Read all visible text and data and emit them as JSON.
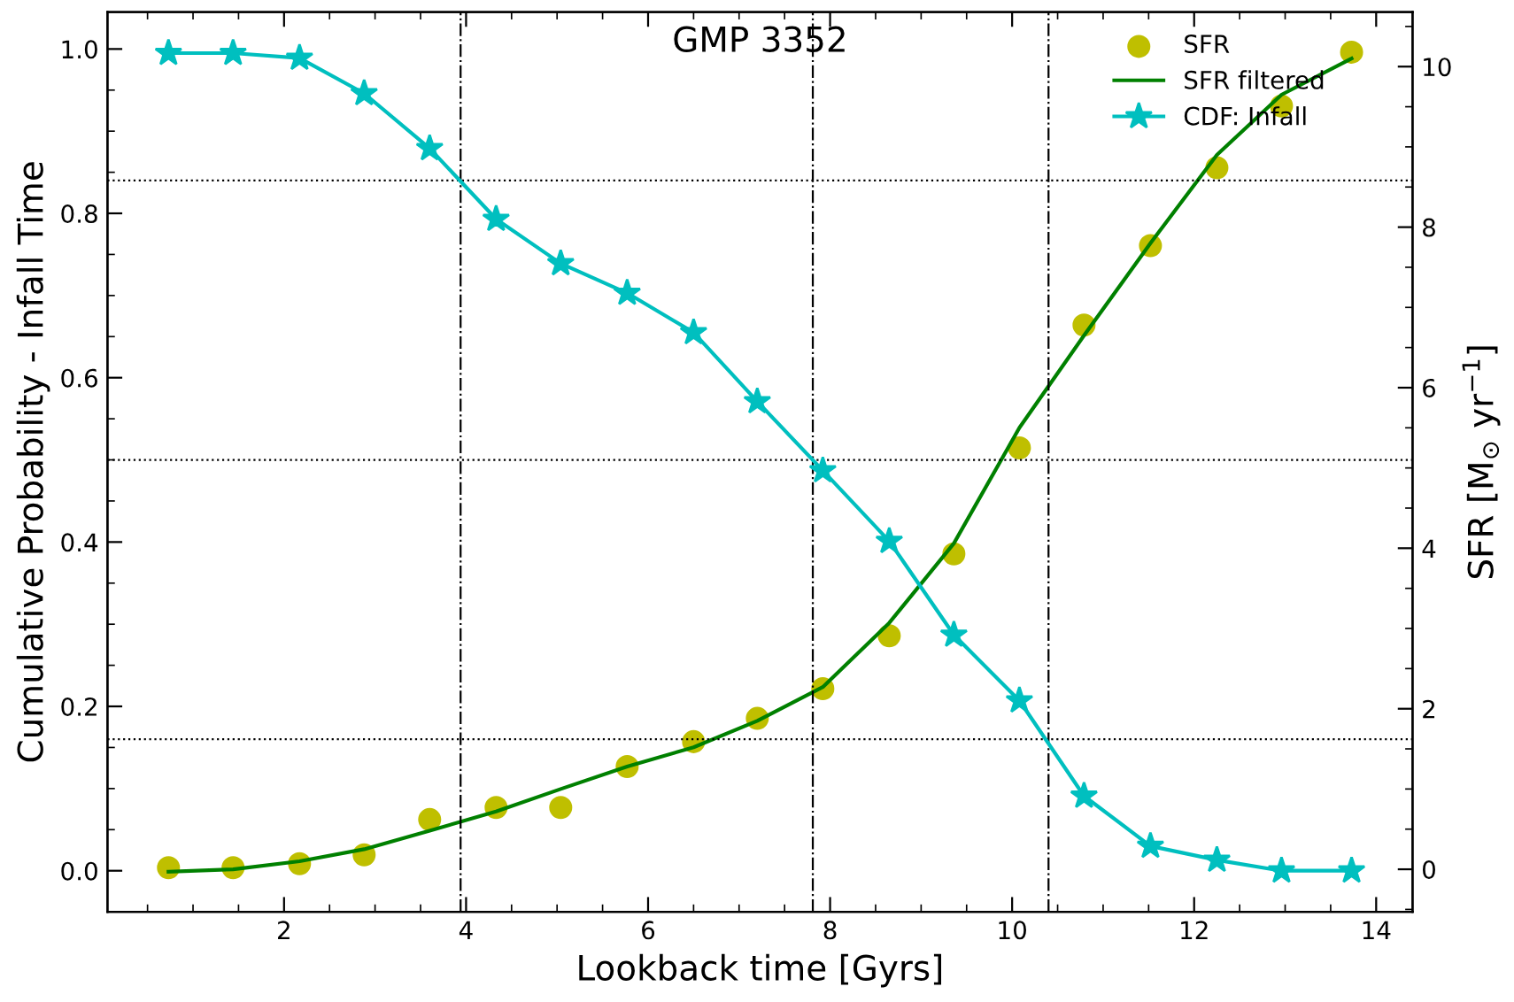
{
  "chart_data": {
    "type": "line",
    "title": "GMP 3352",
    "xlabel": "Lookback time [Gyrs]",
    "ylabel": "Cumulative Probability - Infall Time",
    "y2label": "SFR [M$_{⊙}$ yr$^{−1}$]",
    "xlim": [
      0.06,
      14.4
    ],
    "xticks": [
      2,
      4,
      6,
      8,
      10,
      12,
      14
    ],
    "ylim": [
      -0.05,
      1.045
    ],
    "yticks": [
      {
        "value": 0.0,
        "label": "0.0"
      },
      {
        "value": 0.2,
        "label": "0.2"
      },
      {
        "value": 0.4,
        "label": "0.4"
      },
      {
        "value": 0.6,
        "label": "0.6"
      },
      {
        "value": 0.8,
        "label": "0.8"
      },
      {
        "value": 1.0,
        "label": "1.0"
      }
    ],
    "y2lim": [
      -0.53,
      10.68
    ],
    "y2ticks": [
      0,
      2,
      4,
      6,
      8,
      10
    ],
    "x": [
      0.73,
      1.44,
      2.17,
      2.88,
      3.6,
      4.33,
      5.04,
      5.77,
      6.5,
      7.2,
      7.92,
      8.65,
      9.36,
      10.08,
      10.79,
      11.52,
      12.25,
      12.96,
      13.73
    ],
    "series": [
      {
        "name": "SFR",
        "type": "scatter",
        "axis": "y2",
        "color": "#bfbf00",
        "marker": "circle",
        "values": [
          0.02,
          0.02,
          0.07,
          0.18,
          0.62,
          0.77,
          0.77,
          1.28,
          1.59,
          1.88,
          2.25,
          2.91,
          3.93,
          5.25,
          6.78,
          7.77,
          8.74,
          9.51,
          10.18
        ]
      },
      {
        "name": "SFR filtered",
        "type": "line",
        "axis": "y2",
        "color": "#008000",
        "marker": "none",
        "values": [
          -0.03,
          0.0,
          0.1,
          0.25,
          0.48,
          0.72,
          1.0,
          1.28,
          1.52,
          1.85,
          2.27,
          3.07,
          4.06,
          5.5,
          6.65,
          7.8,
          8.9,
          9.65,
          10.1
        ]
      },
      {
        "name": "CDF: Infall",
        "type": "line",
        "axis": "y",
        "color": "#00bfbf",
        "marker": "star",
        "values": [
          0.995,
          0.995,
          0.989,
          0.946,
          0.879,
          0.793,
          0.739,
          0.703,
          0.655,
          0.571,
          0.487,
          0.401,
          0.287,
          0.207,
          0.091,
          0.03,
          0.013,
          0.0,
          0.0
        ]
      }
    ],
    "ref_lines": [
      {
        "axis": "x",
        "value": 3.94,
        "color": "#000000",
        "line_style": "dashdot"
      },
      {
        "axis": "x",
        "value": 7.81,
        "color": "#000000",
        "line_style": "dashdot"
      },
      {
        "axis": "x",
        "value": 10.4,
        "color": "#000000",
        "line_style": "dashdot"
      },
      {
        "axis": "y",
        "value": 0.84,
        "color": "#000000",
        "line_style": "dotted"
      },
      {
        "axis": "y",
        "value": 0.5,
        "color": "#000000",
        "line_style": "dotted"
      },
      {
        "axis": "y",
        "value": 0.16,
        "color": "#000000",
        "line_style": "dotted"
      }
    ],
    "legend": "top right",
    "grid": false,
    "line_style": "solid"
  }
}
